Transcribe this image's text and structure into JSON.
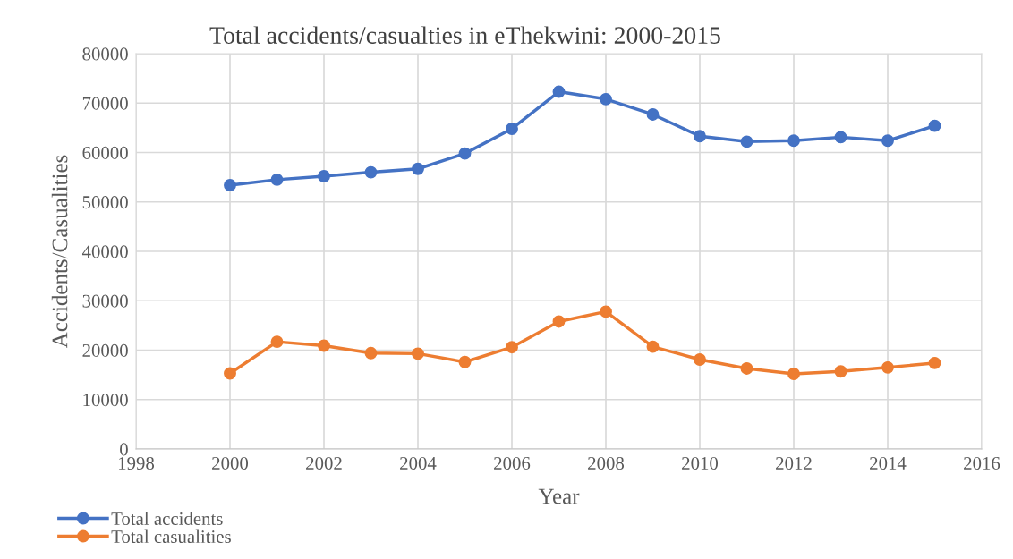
{
  "chart_data": {
    "type": "line",
    "title": "Total accidents/casualties in eThekwini: 2000-2015",
    "xlabel": "Year",
    "ylabel": "Accidents/Casualities",
    "x": [
      2000,
      2001,
      2002,
      2003,
      2004,
      2005,
      2006,
      2007,
      2008,
      2009,
      2010,
      2011,
      2012,
      2013,
      2014,
      2015
    ],
    "series": [
      {
        "name": "Total accidents",
        "color": "#4472c4",
        "values": [
          53400,
          54500,
          55200,
          56000,
          56700,
          59800,
          64800,
          72300,
          70800,
          67700,
          63300,
          62200,
          62400,
          63100,
          62400,
          65400
        ]
      },
      {
        "name": "Total casualities",
        "color": "#ed7d31",
        "values": [
          15300,
          21700,
          20900,
          19400,
          19300,
          17600,
          20600,
          25800,
          27800,
          20700,
          18100,
          16300,
          15200,
          15700,
          16500,
          17400
        ]
      }
    ],
    "xlim": [
      1998,
      2016
    ],
    "xticks": [
      1998,
      2000,
      2002,
      2004,
      2006,
      2008,
      2010,
      2012,
      2014,
      2016
    ],
    "ylim": [
      0,
      80000
    ],
    "yticks": [
      0,
      10000,
      20000,
      30000,
      40000,
      50000,
      60000,
      70000,
      80000
    ],
    "grid": true,
    "legend": "bottom left",
    "marker": "circle",
    "line_style": "solid"
  }
}
